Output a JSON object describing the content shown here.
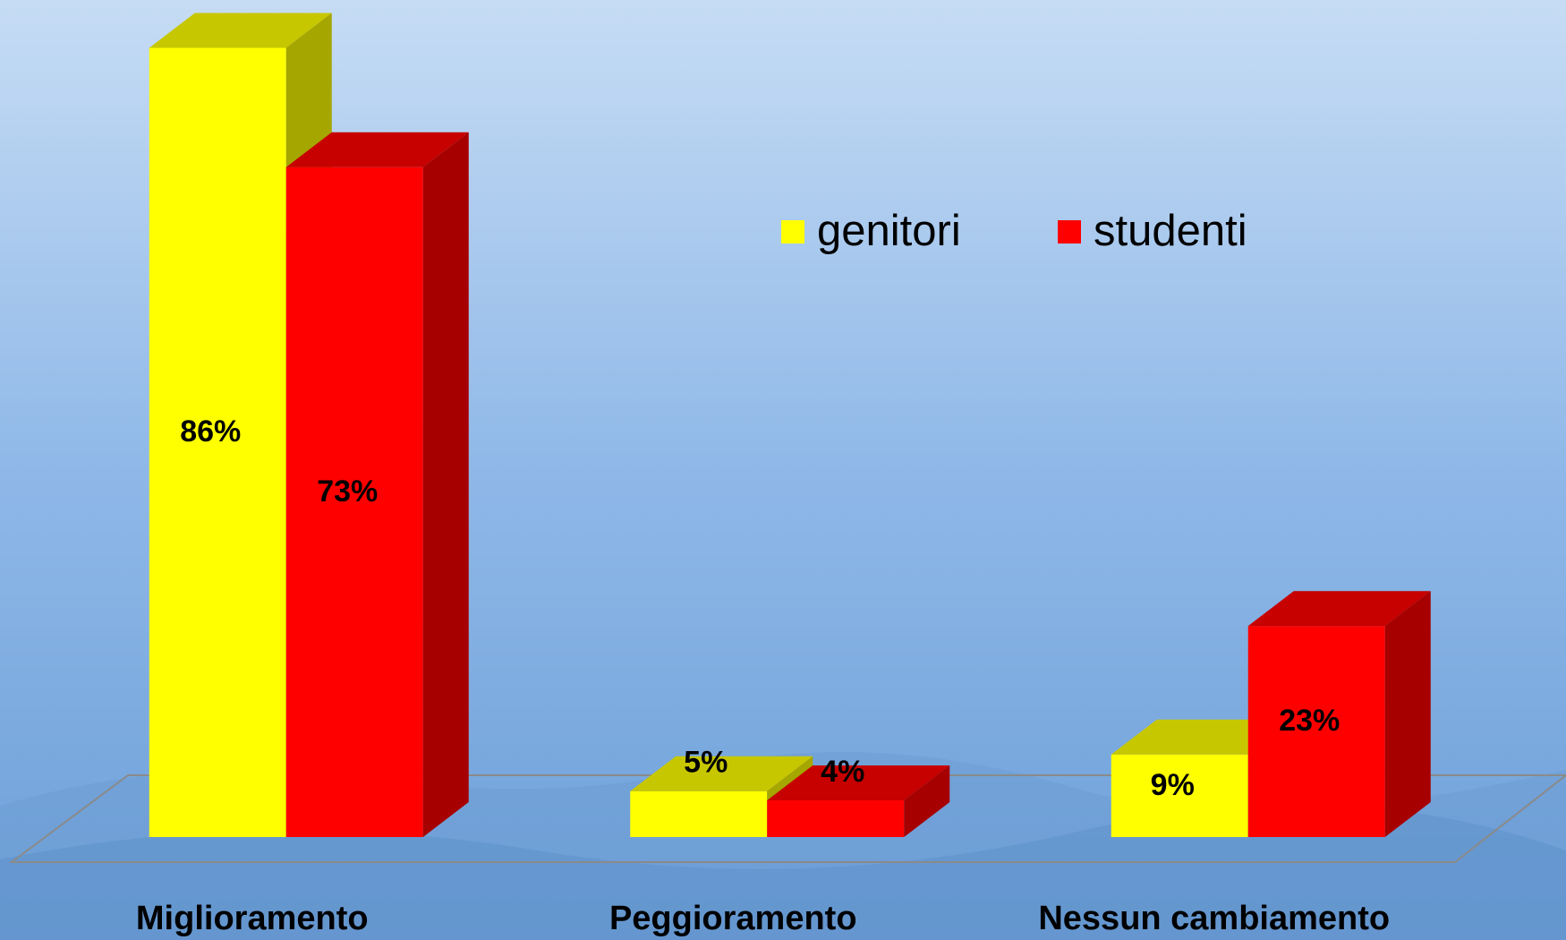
{
  "chart_data": {
    "type": "bar3d",
    "categories": [
      "Miglioramento",
      "Peggioramento",
      "Nessun cambiamento"
    ],
    "series": [
      {
        "name": "genitori",
        "color": "#ffff00",
        "values": [
          86,
          5,
          9
        ],
        "value_labels": [
          "86%",
          "5%",
          "9%"
        ]
      },
      {
        "name": "studenti",
        "color": "#ff0000",
        "values": [
          73,
          4,
          23
        ],
        "value_labels": [
          "73%",
          "4%",
          "23%"
        ]
      }
    ]
  }
}
